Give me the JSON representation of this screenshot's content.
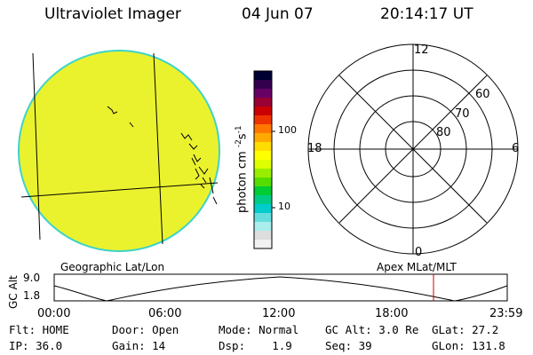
{
  "header": {
    "instrument": "Ultraviolet Imager",
    "date": "04 Jun 07",
    "time": "20:14:17 UT"
  },
  "colorbar": {
    "unit_label": "photon cm",
    "unit_exp1": "-2",
    "unit_mid": "s",
    "unit_exp2": "-1",
    "tick_high": "100",
    "tick_low": "10",
    "colors": [
      "#000033",
      "#33004d",
      "#660066",
      "#990033",
      "#cc0000",
      "#ee3300",
      "#ff7700",
      "#ffaa00",
      "#ffdd00",
      "#ffff00",
      "#ddff00",
      "#99ee00",
      "#55dd00",
      "#00cc33",
      "#00cc88",
      "#00cccc",
      "#66dddd",
      "#aaeeee",
      "#dddddd",
      "#f2f2f2"
    ]
  },
  "polar_plot": {
    "mlt_top": "12",
    "mlt_left": "18",
    "mlt_right": "6",
    "mlt_bottom": "0",
    "lat_60": "60",
    "lat_70": "70",
    "lat_80": "80"
  },
  "altitude_plot": {
    "left_title": "Geographic Lat/Lon",
    "right_title": "Apex MLat/MLT",
    "y_axis_label": "GC Alt",
    "y_max": "9.0",
    "y_min": "1.8",
    "x_ticks": [
      "00:00",
      "06:00",
      "12:00",
      "18:00",
      "23:59"
    ],
    "marker_color": "#cc0000"
  },
  "status": {
    "filter": "Flt: HOME",
    "door": "Door: Open",
    "mode": "Mode: Normal",
    "gc_alt": "GC Alt: 3.0 Re",
    "glat": "GLat:  27.2",
    "ip": "IP: 36.0",
    "gain": "Gain: 14",
    "dsp": "Dsp:    1.9",
    "seq": "Seq: 39",
    "glon": "GLon: 131.8"
  },
  "image_disk": {
    "fill_color": "#eaf22e",
    "edge_color": "#3fd3c9"
  }
}
